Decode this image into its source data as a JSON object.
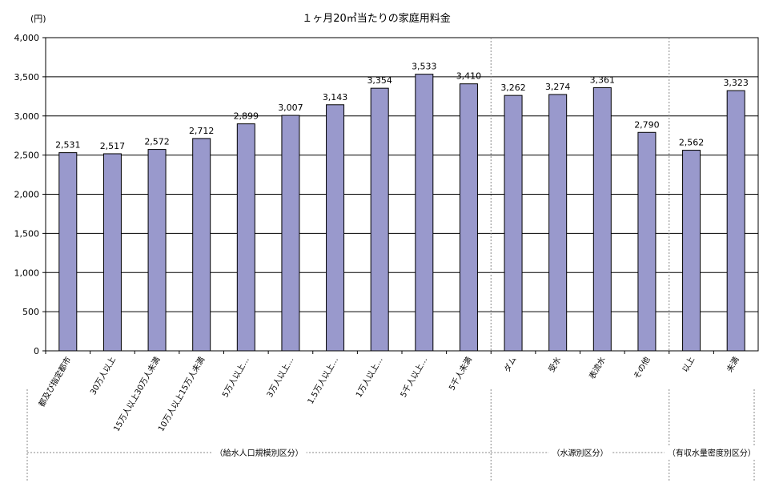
{
  "chart_data": {
    "type": "bar",
    "title": "１ヶ月20㎥当たりの家庭用料金",
    "ylabel": "(円)",
    "xlabel": "",
    "ylim": [
      0,
      4000
    ],
    "yticks": [
      "0",
      "500",
      "1,000",
      "1,500",
      "2,000",
      "2,500",
      "3,000",
      "3,500",
      "4,000"
    ],
    "grid": true,
    "bar_color": "#9999CC",
    "categories": [
      "都及び指定都市",
      "30万人以上",
      "15万人以上30万人未満",
      "10万人以上15万人未満",
      "5万人以上…",
      "3万人以上…",
      "1.5万人以上…",
      "1万人以上…",
      "5千人以上…",
      "5千人未満",
      "ダム",
      "受水",
      "表流水",
      "その他",
      "以上",
      "未満"
    ],
    "values": [
      2531,
      2517,
      2572,
      2712,
      2899,
      3007,
      3143,
      3354,
      3533,
      3410,
      3262,
      3274,
      3361,
      2790,
      2562,
      3323
    ],
    "value_labels": [
      "2,531",
      "2,517",
      "2,572",
      "2,712",
      "2,899",
      "3,007",
      "3,143",
      "3,354",
      "3,533",
      "3,410",
      "3,262",
      "3,274",
      "3,361",
      "2,790",
      "2,562",
      "3,323"
    ],
    "groups": [
      {
        "label": "（給水人口規模別区分）",
        "start": 0,
        "end": 9
      },
      {
        "label": "（水源別区分）",
        "start": 10,
        "end": 13
      },
      {
        "label": "（有収水量密度別区分）",
        "start": 14,
        "end": 15
      }
    ]
  }
}
